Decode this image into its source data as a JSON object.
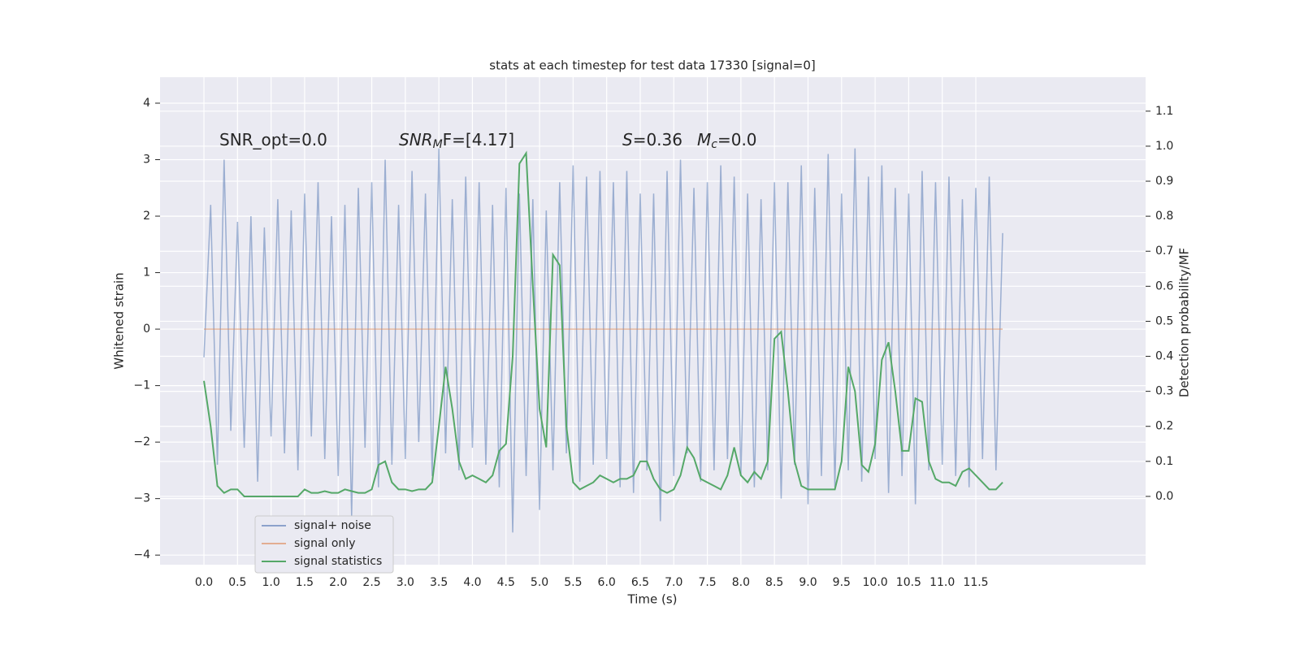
{
  "chart_data": {
    "type": "line",
    "title": "stats at each timestep for test data 17330 [signal=0]",
    "xlabel": "Time (s)",
    "ylabel": "Whitened strain",
    "y2label": "Detection probability/MF",
    "annotations": [
      [
        "SNR_opt=0.0"
      ],
      [
        "SNR",
        "M",
        "F=[4.17]"
      ],
      [
        "S",
        "=0.36"
      ],
      [
        "M",
        "c",
        "=0.0"
      ]
    ],
    "x": [
      0,
      0.1,
      0.2,
      0.3,
      0.4,
      0.5,
      0.6,
      0.7,
      0.8,
      0.9,
      1,
      1.1,
      1.2,
      1.3,
      1.4,
      1.5,
      1.6,
      1.7,
      1.8,
      1.9,
      2,
      2.1,
      2.2,
      2.3,
      2.4,
      2.5,
      2.6,
      2.7,
      2.8,
      2.9,
      3,
      3.1,
      3.2,
      3.3,
      3.4,
      3.5,
      3.6,
      3.7,
      3.8,
      3.9,
      4,
      4.1,
      4.2,
      4.3,
      4.4,
      4.5,
      4.6,
      4.7,
      4.8,
      4.9,
      5,
      5.1,
      5.2,
      5.3,
      5.4,
      5.5,
      5.6,
      5.7,
      5.8,
      5.9,
      6,
      6.1,
      6.2,
      6.3,
      6.4,
      6.5,
      6.6,
      6.7,
      6.8,
      6.9,
      7,
      7.1,
      7.2,
      7.3,
      7.4,
      7.5,
      7.6,
      7.7,
      7.8,
      7.9,
      8,
      8.1,
      8.2,
      8.3,
      8.4,
      8.5,
      8.6,
      8.7,
      8.8,
      8.9,
      9,
      9.1,
      9.2,
      9.3,
      9.4,
      9.5,
      9.6,
      9.7,
      9.8,
      9.9,
      10,
      10.1,
      10.2,
      10.3,
      10.4,
      10.5,
      10.6,
      10.7,
      10.8,
      10.9,
      11,
      11.1,
      11.2,
      11.3,
      11.4,
      11.5,
      11.6,
      11.7,
      11.8,
      11.9
    ],
    "series": [
      {
        "name": "signal+ noise",
        "color": "#4c72b0",
        "values": [
          -0.5,
          2.2,
          -2.4,
          3.0,
          -1.8,
          1.9,
          -2.1,
          2.0,
          -2.7,
          1.8,
          -1.9,
          2.3,
          -2.2,
          2.1,
          -2.5,
          2.4,
          -1.9,
          2.6,
          -2.3,
          2.0,
          -2.6,
          2.2,
          -3.3,
          2.5,
          -2.1,
          2.6,
          -2.8,
          3.0,
          -2.4,
          2.2,
          -2.3,
          2.8,
          -2.0,
          2.4,
          -2.6,
          3.2,
          -2.2,
          2.3,
          -2.5,
          2.7,
          -2.1,
          2.6,
          -2.4,
          2.2,
          -2.8,
          2.5,
          -3.6,
          2.4,
          -2.6,
          2.3,
          -3.2,
          2.1,
          -2.5,
          2.6,
          -2.2,
          2.9,
          -2.7,
          2.7,
          -2.4,
          2.8,
          -2.3,
          2.6,
          -2.8,
          2.8,
          -2.9,
          2.4,
          -2.5,
          2.4,
          -3.4,
          2.8,
          -2.6,
          3.0,
          -2.2,
          2.5,
          -2.7,
          2.6,
          -2.5,
          2.9,
          -2.3,
          2.7,
          -2.6,
          2.4,
          -2.8,
          2.3,
          -2.5,
          2.6,
          -3.0,
          2.6,
          -2.4,
          2.9,
          -3.1,
          2.5,
          -2.6,
          3.1,
          -2.8,
          2.4,
          -2.5,
          3.2,
          -2.7,
          2.7,
          -2.3,
          2.9,
          -2.9,
          2.5,
          -2.6,
          2.4,
          -3.1,
          2.8,
          -2.5,
          2.6,
          -2.4,
          2.7,
          -2.6,
          2.3,
          -2.8,
          2.5,
          -2.3,
          2.7,
          -2.5,
          1.7
        ]
      },
      {
        "name": "signal only",
        "color": "#dd8452",
        "values": [
          0,
          0,
          0,
          0,
          0,
          0,
          0,
          0,
          0,
          0,
          0,
          0,
          0,
          0,
          0,
          0,
          0,
          0,
          0,
          0,
          0,
          0,
          0,
          0,
          0,
          0,
          0,
          0,
          0,
          0,
          0,
          0,
          0,
          0,
          0,
          0,
          0,
          0,
          0,
          0,
          0,
          0,
          0,
          0,
          0,
          0,
          0,
          0,
          0,
          0,
          0,
          0,
          0,
          0,
          0,
          0,
          0,
          0,
          0,
          0,
          0,
          0,
          0,
          0,
          0,
          0,
          0,
          0,
          0,
          0,
          0,
          0,
          0,
          0,
          0,
          0,
          0,
          0,
          0,
          0,
          0,
          0,
          0,
          0,
          0,
          0,
          0,
          0,
          0,
          0,
          0,
          0,
          0,
          0,
          0,
          0,
          0,
          0,
          0,
          0,
          0,
          0,
          0,
          0,
          0,
          0,
          0,
          0,
          0,
          0,
          0,
          0,
          0,
          0,
          0,
          0,
          0,
          0,
          0,
          0
        ]
      },
      {
        "name": "signal statistics",
        "color": "#55a868",
        "axis": "y2",
        "values": [
          0.33,
          0.2,
          0.03,
          0.01,
          0.02,
          0.02,
          0.0,
          0.0,
          0.0,
          0.0,
          0.0,
          0.0,
          0.0,
          0.0,
          0.0,
          0.02,
          0.01,
          0.01,
          0.015,
          0.01,
          0.01,
          0.02,
          0.015,
          0.01,
          0.01,
          0.02,
          0.09,
          0.1,
          0.04,
          0.02,
          0.02,
          0.015,
          0.02,
          0.02,
          0.04,
          0.2,
          0.37,
          0.25,
          0.1,
          0.05,
          0.06,
          0.05,
          0.04,
          0.06,
          0.13,
          0.15,
          0.4,
          0.95,
          0.98,
          0.6,
          0.25,
          0.14,
          0.69,
          0.66,
          0.2,
          0.04,
          0.02,
          0.03,
          0.04,
          0.06,
          0.05,
          0.04,
          0.05,
          0.05,
          0.06,
          0.1,
          0.1,
          0.05,
          0.02,
          0.01,
          0.02,
          0.06,
          0.14,
          0.11,
          0.05,
          0.04,
          0.03,
          0.02,
          0.06,
          0.14,
          0.06,
          0.04,
          0.07,
          0.05,
          0.1,
          0.45,
          0.47,
          0.3,
          0.1,
          0.03,
          0.02,
          0.02,
          0.02,
          0.02,
          0.02,
          0.1,
          0.37,
          0.3,
          0.09,
          0.07,
          0.15,
          0.39,
          0.44,
          0.3,
          0.13,
          0.13,
          0.28,
          0.27,
          0.1,
          0.05,
          0.04,
          0.04,
          0.03,
          0.07,
          0.08,
          0.06,
          0.04,
          0.02,
          0.02,
          0.04
        ]
      }
    ],
    "xlim": [
      -0.654,
      14.03
    ],
    "xticks": [
      {
        "value": 0,
        "label": "0.0"
      },
      0.5,
      {
        "value": 1,
        "label": "1.0"
      },
      1.5,
      {
        "value": 2,
        "label": "2.0"
      },
      2.5,
      {
        "value": 3,
        "label": "3.0"
      },
      3.5,
      {
        "value": 4,
        "label": "4.0"
      },
      4.5,
      {
        "value": 5,
        "label": "5.0"
      },
      5.5,
      {
        "value": 6,
        "label": "6.0"
      },
      6.5,
      {
        "value": 7,
        "label": "7.0"
      },
      7.5,
      {
        "value": 8,
        "label": "8.0"
      },
      8.5,
      {
        "value": 9,
        "label": "9.0"
      },
      9.5,
      {
        "value": 10,
        "label": "10.0"
      },
      10.5,
      {
        "value": 11,
        "label": "11.0"
      },
      11.5
    ],
    "ylim": [
      -4.17,
      4.46
    ],
    "yticks": [
      {
        "value": -4,
        "label": "−4"
      },
      {
        "value": -3,
        "label": "−3"
      },
      {
        "value": -2,
        "label": "−2"
      },
      {
        "value": -1,
        "label": "−1"
      },
      0,
      1,
      2,
      3,
      4
    ],
    "y2lim": [
      -0.195,
      1.197
    ],
    "y2ticks": [
      {
        "value": 0,
        "label": "0.0"
      },
      0.1,
      0.2,
      0.3,
      0.4,
      0.5,
      0.6,
      0.7,
      0.8,
      0.9,
      {
        "value": 1,
        "label": "1.0"
      },
      1.1
    ],
    "grid": true,
    "legend": "lower left"
  }
}
